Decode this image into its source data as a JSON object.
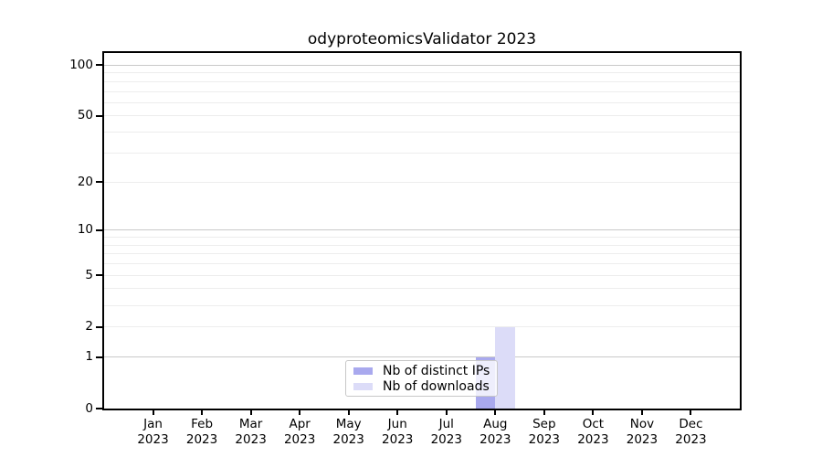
{
  "window": {
    "background_color": "#ffffff"
  },
  "chart_data": {
    "type": "bar",
    "title": "odyproteomicsValidator 2023",
    "xlabel": "",
    "ylabel": "",
    "categories": [
      "Jan",
      "Feb",
      "Mar",
      "Apr",
      "May",
      "Jun",
      "Jul",
      "Aug",
      "Sep",
      "Oct",
      "Nov",
      "Dec"
    ],
    "x_tick_year_line": "2023",
    "series": [
      {
        "name": "Nb of distinct IPs",
        "color": "#a9a9ee",
        "values": [
          0,
          0,
          0,
          0,
          0,
          0,
          0,
          1,
          0,
          0,
          0,
          0
        ]
      },
      {
        "name": "Nb of downloads",
        "color": "#dcdcf8",
        "values": [
          0,
          0,
          0,
          0,
          0,
          0,
          0,
          2,
          0,
          0,
          0,
          0
        ]
      }
    ],
    "y_axis": {
      "scale": "log10(1+v)",
      "ylim": [
        0,
        118
      ],
      "ticks": [
        0,
        1,
        2,
        5,
        10,
        20,
        50,
        100
      ],
      "major_gridlines": [
        1,
        10,
        100
      ],
      "minor_gridlines": [
        2,
        3,
        4,
        5,
        6,
        7,
        8,
        9,
        20,
        30,
        40,
        50,
        60,
        70,
        80,
        90
      ]
    },
    "legend": {
      "position": "lower center, inside plot",
      "background": "rgba(255,255,255,0.8)",
      "border_color": "#c8c8c8"
    },
    "grid": true,
    "colors": {
      "axis": "#000000",
      "major_grid": "#c9c9c9",
      "minor_grid": "#ededed"
    }
  }
}
